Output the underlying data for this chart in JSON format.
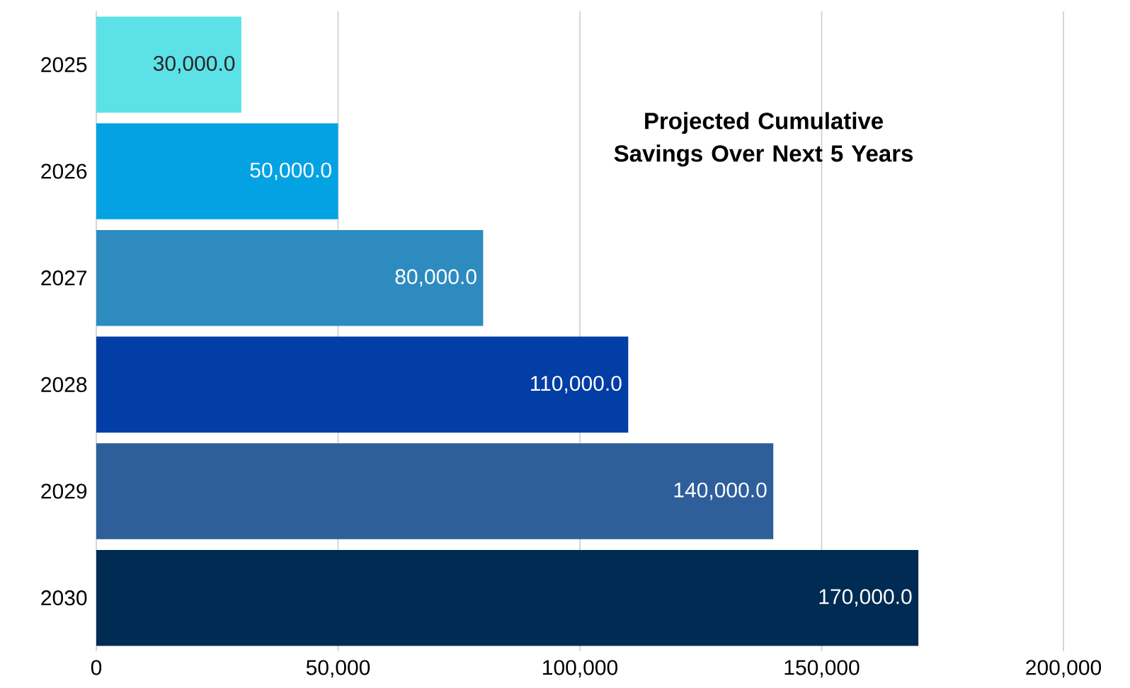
{
  "chart_data": {
    "type": "bar",
    "orientation": "horizontal",
    "title": "Projected Cumulative Savings Over Next 5 Years",
    "categories": [
      "2025",
      "2026",
      "2027",
      "2028",
      "2029",
      "2030"
    ],
    "values": [
      30000,
      50000,
      80000,
      110000,
      140000,
      170000
    ],
    "value_labels": [
      "30,000.0",
      "50,000.0",
      "80,000.0",
      "110,000.0",
      "140,000.0",
      "170,000.0"
    ],
    "colors": [
      "#5ce1e6",
      "#03a3e3",
      "#2e8bc0",
      "#023ea5",
      "#2e5f9b",
      "#002b53"
    ],
    "xlim": [
      0,
      200000
    ],
    "xticks": [
      {
        "value": 0,
        "label": "0"
      },
      {
        "value": 50000,
        "label": "50,000"
      },
      {
        "value": 100000,
        "label": "100,000"
      },
      {
        "value": 150000,
        "label": "150,000"
      },
      {
        "value": 200000,
        "label": "200,000"
      }
    ],
    "grid": "x"
  }
}
